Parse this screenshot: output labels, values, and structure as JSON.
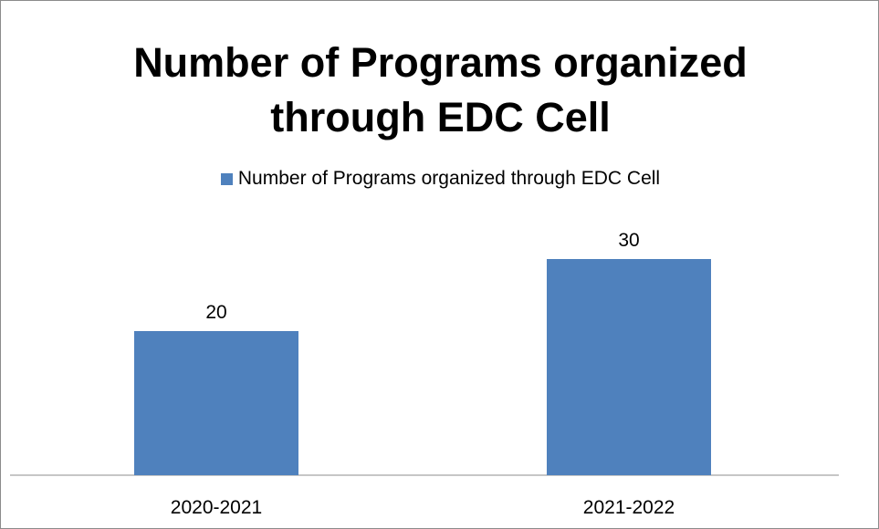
{
  "chart_data": {
    "type": "bar",
    "title": "Number of Programs organized through EDC Cell",
    "title_lines": [
      "Number of Programs organized",
      "through EDC Cell"
    ],
    "categories": [
      "2020-2021",
      "2021-2022"
    ],
    "series": [
      {
        "name": "Number of Programs organized through EDC Cell",
        "values": [
          20,
          30
        ],
        "color": "#4f81bd"
      }
    ],
    "data_labels": [
      "20",
      "30"
    ],
    "ylim": [
      0,
      40
    ],
    "grid": false,
    "legend_position": "top",
    "xlabel": "",
    "ylabel": ""
  }
}
